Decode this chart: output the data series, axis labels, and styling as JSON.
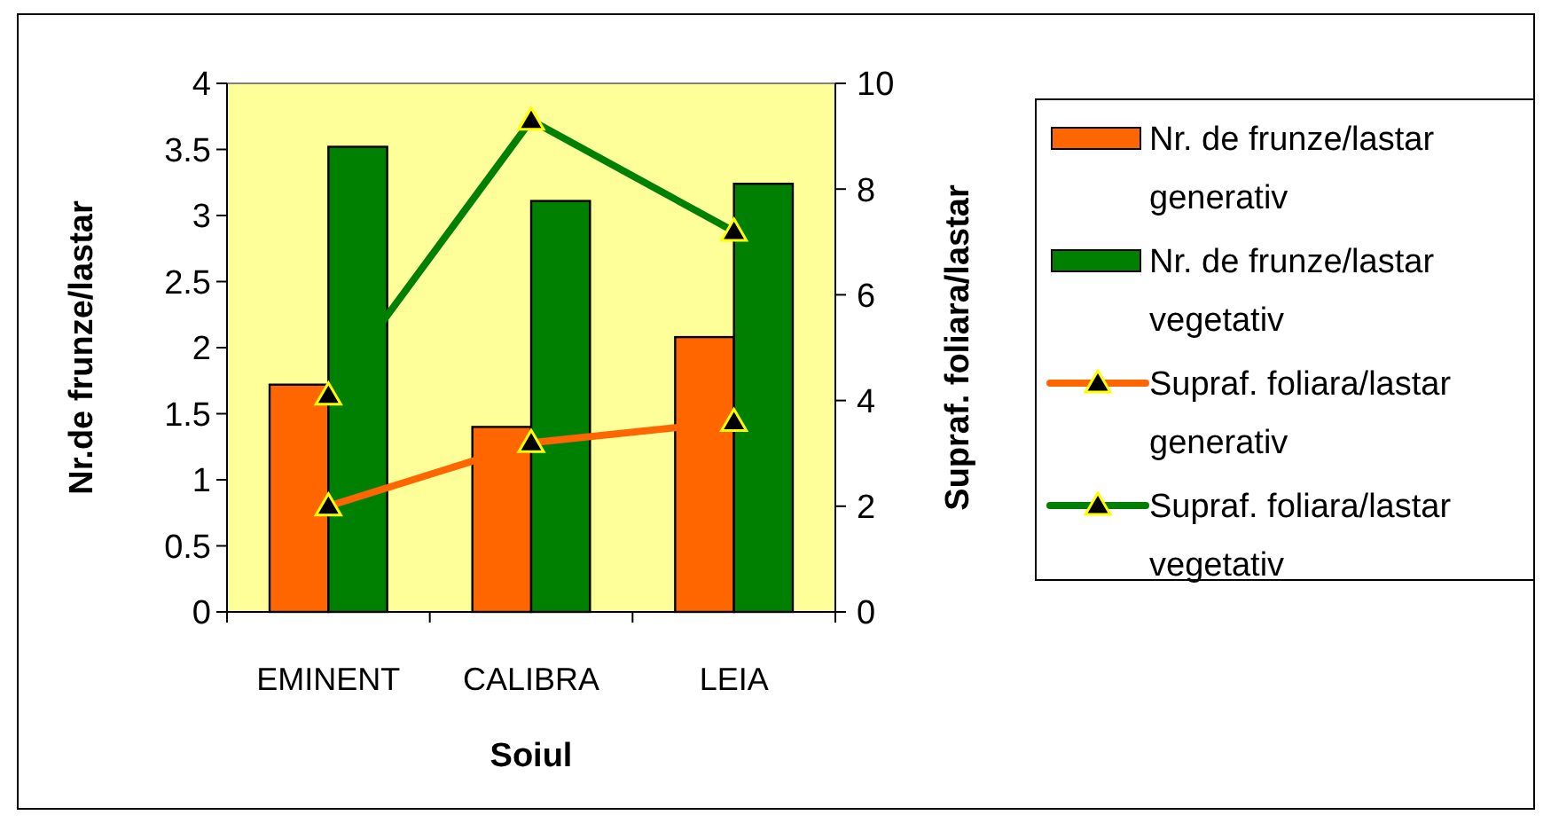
{
  "chart_data": {
    "type": "bar",
    "xlabel": "Soiul",
    "ylabel": "Nr.de frunze/lastar",
    "y2label": "Supraf. foliara/lastar",
    "categories": [
      "EMINENT",
      "CALIBRA",
      "LEIA"
    ],
    "series": [
      {
        "name": "Nr. de frunze/lastar generativ",
        "color": "#ff6600",
        "values": [
          1.72,
          1.4,
          2.08
        ]
      },
      {
        "name": "Nr. de frunze/lastar vegetativ",
        "color": "#008000",
        "values": [
          3.52,
          3.11,
          3.24
        ]
      },
      {
        "name": "Supraf. foliara/lastar generativ",
        "type": "line",
        "axis": "y2",
        "color": "#ff6600",
        "values": [
          2.0,
          3.2,
          3.6
        ]
      },
      {
        "name": "Supraf. foliara/lastar vegetativ",
        "type": "line",
        "axis": "y2",
        "color": "#008000",
        "values": [
          4.1,
          9.3,
          7.2
        ]
      }
    ],
    "ylim": [
      0,
      4
    ],
    "yticks": [
      0,
      0.5,
      1,
      1.5,
      2,
      2.5,
      3,
      3.5,
      4
    ],
    "y2lim": [
      0,
      10
    ],
    "y2ticks": [
      0,
      2,
      4,
      6,
      8,
      10
    ],
    "marker": "triangle",
    "legend": "right",
    "grid": false
  }
}
